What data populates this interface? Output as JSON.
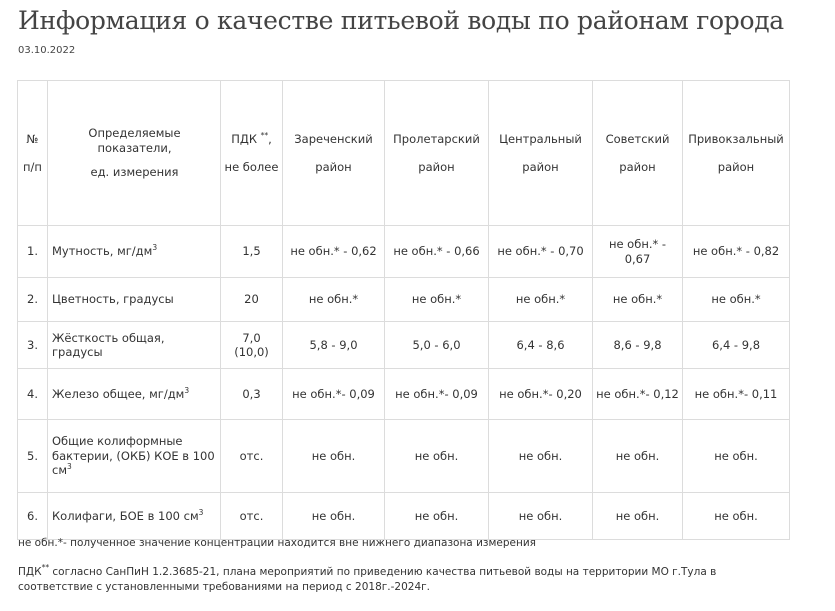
{
  "page": {
    "title": "Информация о качестве питьевой воды по районам города",
    "date": "03.10.2022"
  },
  "table": {
    "headers": {
      "num_line1": "№",
      "num_line2": "п/п",
      "indicator_line1": "Определяемые показатели,",
      "indicator_line2": "ед. измерения",
      "pdk_prefix": "ПДК",
      "pdk_sup": "**",
      "pdk_suffix": ",",
      "pdk_line2": "не более",
      "districts": [
        {
          "line1": "Зареченский",
          "line2": "район"
        },
        {
          "line1": "Пролетарский",
          "line2": "район"
        },
        {
          "line1": "Центральный",
          "line2": "район"
        },
        {
          "line1": "Советский",
          "line2": "район"
        },
        {
          "line1": "Привокзальный",
          "line2": "район"
        }
      ]
    },
    "rows": [
      {
        "num": "1.",
        "indicator": "Мутность,  мг/дм",
        "indicator_sup": "3",
        "pdk": "1,5",
        "values": [
          "не обн.* - 0,62",
          "не обн.* - 0,66",
          "не обн.* - 0,70",
          "не обн.* - 0,67",
          "не обн.* - 0,82"
        ]
      },
      {
        "num": "2.",
        "indicator": "Цветность, градусы",
        "indicator_sup": "",
        "pdk": "20",
        "values": [
          "не обн.*",
          "не обн.*",
          "не обн.*",
          "не обн.*",
          "не обн.*"
        ]
      },
      {
        "num": "3.",
        "indicator": "Жёсткость общая,  градусы",
        "indicator_sup": "",
        "pdk": "7,0 (10,0)",
        "values": [
          "5,8 - 9,0",
          "5,0 - 6,0",
          "6,4 - 8,6",
          "8,6 - 9,8",
          "6,4 - 9,8"
        ]
      },
      {
        "num": "4.",
        "indicator": "Железо общее, мг/дм",
        "indicator_sup": "3",
        "pdk": "0,3",
        "values": [
          "не обн.*- 0,09",
          "не обн.*- 0,09",
          "не обн.*- 0,20",
          "не обн.*- 0,12",
          "не обн.*- 0,11"
        ]
      },
      {
        "num": "5.",
        "indicator": "Общие колиформные бактерии, (ОКБ) КОЕ в 100 см",
        "indicator_sup": "3",
        "pdk": "отс.",
        "values": [
          "не обн.",
          "не обн.",
          "не обн.",
          "не обн.",
          "не обн."
        ]
      },
      {
        "num": "6.",
        "indicator": "Колифаги, БОЕ в 100 см",
        "indicator_sup": "3",
        "pdk": "отс.",
        "values": [
          "не обн.",
          "не обн.",
          "не обн.",
          "не обн.",
          "не обн."
        ]
      }
    ]
  },
  "notes": {
    "note1": "не обн.*- полученное значение концентрации находится вне нижнего диапазона измерения",
    "note2_prefix": "ПДК",
    "note2_sup": "**",
    "note2_text": " согласно СанПиН 1.2.3685-21, плана мероприятий по приведению качества питьевой воды на территории МО г.Тула в соответствие с установленными требованиями на период с 2018г.-2024г."
  }
}
